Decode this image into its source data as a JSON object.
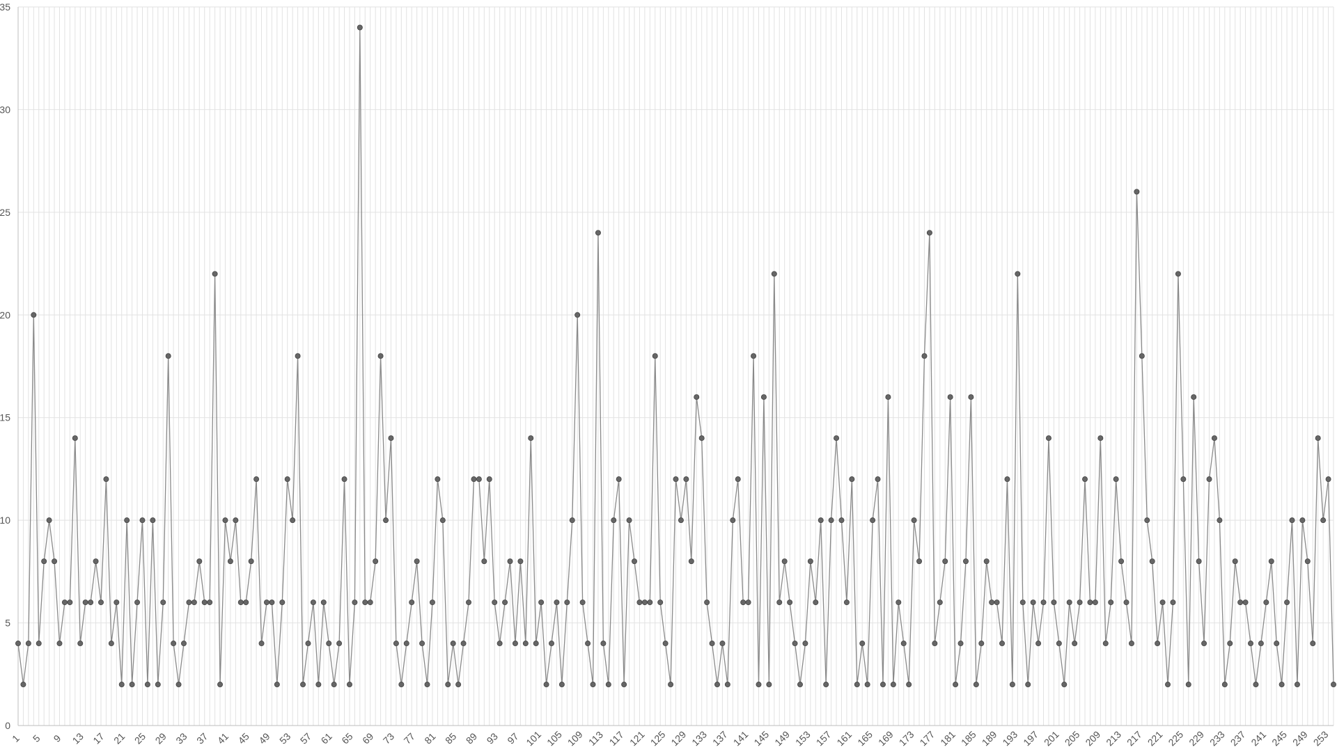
{
  "chart_data": {
    "type": "line",
    "title": "",
    "xlabel": "",
    "ylabel": "",
    "x_start": 1,
    "x_tick_step": 4,
    "ylim": [
      0,
      35
    ],
    "y_ticks": [
      0,
      5,
      10,
      15,
      20,
      25,
      30,
      35
    ],
    "grid": true,
    "legend": "none",
    "colors": {
      "line": "#8a8a8a",
      "marker": "#666666",
      "grid": "#e2e2e2",
      "text": "#555555"
    },
    "values": [
      4,
      2,
      4,
      20,
      4,
      8,
      10,
      8,
      4,
      6,
      6,
      14,
      4,
      6,
      6,
      8,
      6,
      12,
      4,
      6,
      2,
      10,
      2,
      6,
      10,
      2,
      10,
      2,
      6,
      18,
      4,
      2,
      4,
      6,
      6,
      8,
      6,
      6,
      22,
      2,
      10,
      8,
      10,
      6,
      6,
      8,
      12,
      4,
      6,
      6,
      2,
      6,
      12,
      10,
      18,
      2,
      4,
      6,
      2,
      6,
      4,
      2,
      4,
      12,
      2,
      6,
      34,
      6,
      6,
      8,
      18,
      10,
      14,
      4,
      2,
      4,
      6,
      8,
      4,
      2,
      6,
      12,
      10,
      2,
      4,
      2,
      4,
      6,
      12,
      12,
      8,
      12,
      6,
      4,
      6,
      8,
      4,
      8,
      4,
      14,
      4,
      6,
      2,
      4,
      6,
      2,
      6,
      10,
      20,
      6,
      4,
      2,
      24,
      4,
      2,
      10,
      12,
      2,
      10,
      8,
      6,
      6,
      6,
      18,
      6,
      4,
      2,
      12,
      10,
      12,
      8,
      16,
      14,
      6,
      4,
      2,
      4,
      2,
      10,
      12,
      6,
      6,
      18,
      2,
      16,
      2,
      22,
      6,
      8,
      6,
      4,
      2,
      4,
      8,
      6,
      10,
      2,
      10,
      14,
      10,
      6,
      12,
      2,
      4,
      2,
      10,
      12,
      2,
      16,
      2,
      6,
      4,
      2,
      10,
      8,
      18,
      24,
      4,
      6,
      8,
      16,
      2,
      4,
      8,
      16,
      2,
      4,
      8,
      6,
      6,
      4,
      12,
      2,
      22,
      6,
      2,
      6,
      4,
      6,
      14,
      6,
      4,
      2,
      6,
      4,
      6,
      12,
      6,
      6,
      14,
      4,
      6,
      12,
      8,
      6,
      4,
      26,
      18,
      10,
      8,
      4,
      6,
      2,
      6,
      22,
      12,
      2,
      16,
      8,
      4,
      12,
      14,
      10,
      2,
      4,
      8,
      6,
      6,
      4,
      2,
      4,
      6,
      8,
      4,
      2,
      6,
      10,
      2,
      10,
      8,
      4,
      14,
      10,
      12,
      2
    ]
  }
}
